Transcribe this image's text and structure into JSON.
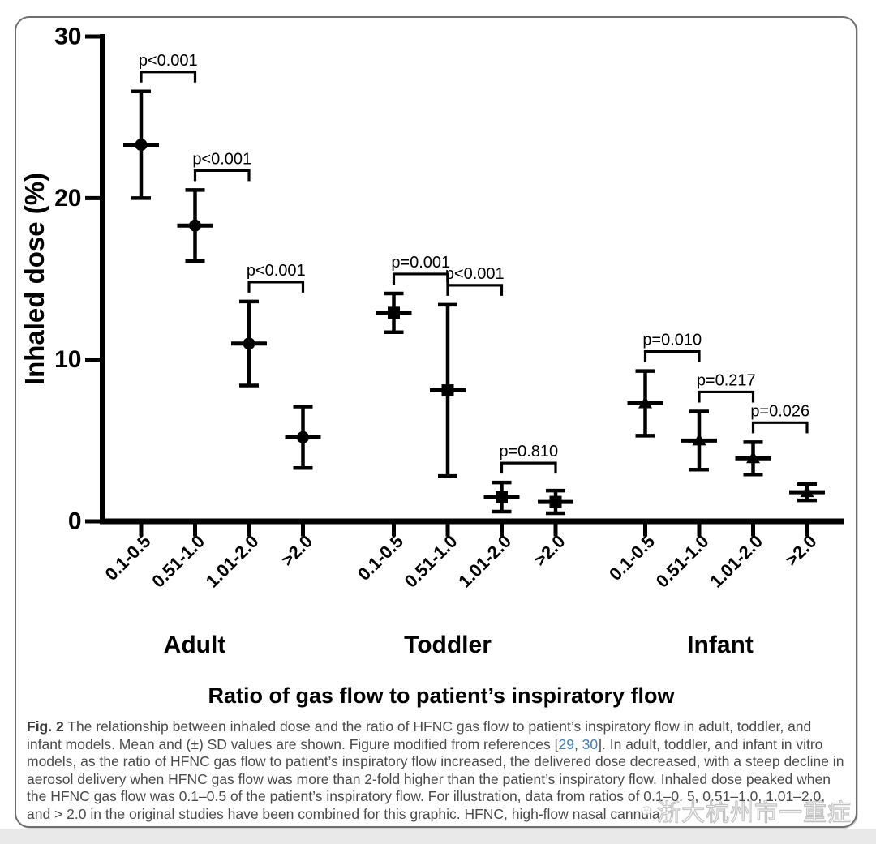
{
  "chart_data": {
    "type": "scatter",
    "title": "",
    "xlabel": "Ratio of gas flow to patient’s inspiratory flow",
    "ylabel": "Inhaled dose (%)",
    "ylim": [
      0,
      30
    ],
    "yticks": [
      0,
      10,
      20,
      30
    ],
    "grid": false,
    "legend": "none",
    "error_bars": "mean ± SD",
    "categories": [
      "0.1-0.5",
      "0.51-1.0",
      "1.01-2.0",
      ">2.0"
    ],
    "groups": [
      {
        "name": "Adult",
        "marker": "circle",
        "means": [
          23.3,
          18.3,
          11.0,
          5.2
        ],
        "sd": [
          3.3,
          2.2,
          2.6,
          1.9
        ],
        "p_values": [
          "p<0.001",
          "p<0.001",
          "p<0.001"
        ]
      },
      {
        "name": "Toddler",
        "marker": "square",
        "means": [
          12.9,
          8.1,
          1.5,
          1.2
        ],
        "sd": [
          1.2,
          5.3,
          0.9,
          0.7
        ],
        "p_values": [
          "p=0.001",
          "p<0.001",
          "p=0.810"
        ]
      },
      {
        "name": "Infant",
        "marker": "triangle",
        "means": [
          7.3,
          5.0,
          3.9,
          1.8
        ],
        "sd": [
          2.0,
          1.8,
          1.0,
          0.5
        ],
        "p_values": [
          "p=0.010",
          "p=0.217",
          "p=0.026"
        ]
      }
    ]
  },
  "caption": {
    "label": "Fig. 2",
    "text_before_refs": " The relationship between inhaled dose and the ratio of HFNC gas flow to patient’s inspiratory flow in adult, toddler, and infant models. Mean and (±) SD values are shown. Figure modified from references ",
    "ref_open": "[",
    "ref1": "29",
    "ref_sep": ", ",
    "ref2": "30",
    "ref_close": "]. ",
    "text_after_refs": "In adult, toddler, and infant in vitro models, as the ratio of HFNC gas flow to patient’s inspiratory flow increased, the delivered dose decreased, with a steep decline in aerosol delivery when HFNC gas flow was more than 2-fold higher than the patient’s inspiratory flow. Inhaled dose peaked when the HFNC gas flow was 0.1–0.5 of the patient’s inspiratory flow. For illustration, data from ratios of 0.1–0. 5, 0.51–1.0, 1.01–2.0, and > 2.0 in the original studies have been combined for this graphic. HFNC, high-flow nasal cannula"
  },
  "watermark": {
    "icon": "wechat-icon",
    "text": "浙大杭州市一重症"
  },
  "colors": {
    "plot_ink": "#000000",
    "caption_text": "#4a4a4a",
    "reference_link": "#3a7cc0",
    "frame_border": "#6e6e6e",
    "bottom_strip": "#e9e9e9",
    "watermark_outline": "#c2c2c2"
  }
}
